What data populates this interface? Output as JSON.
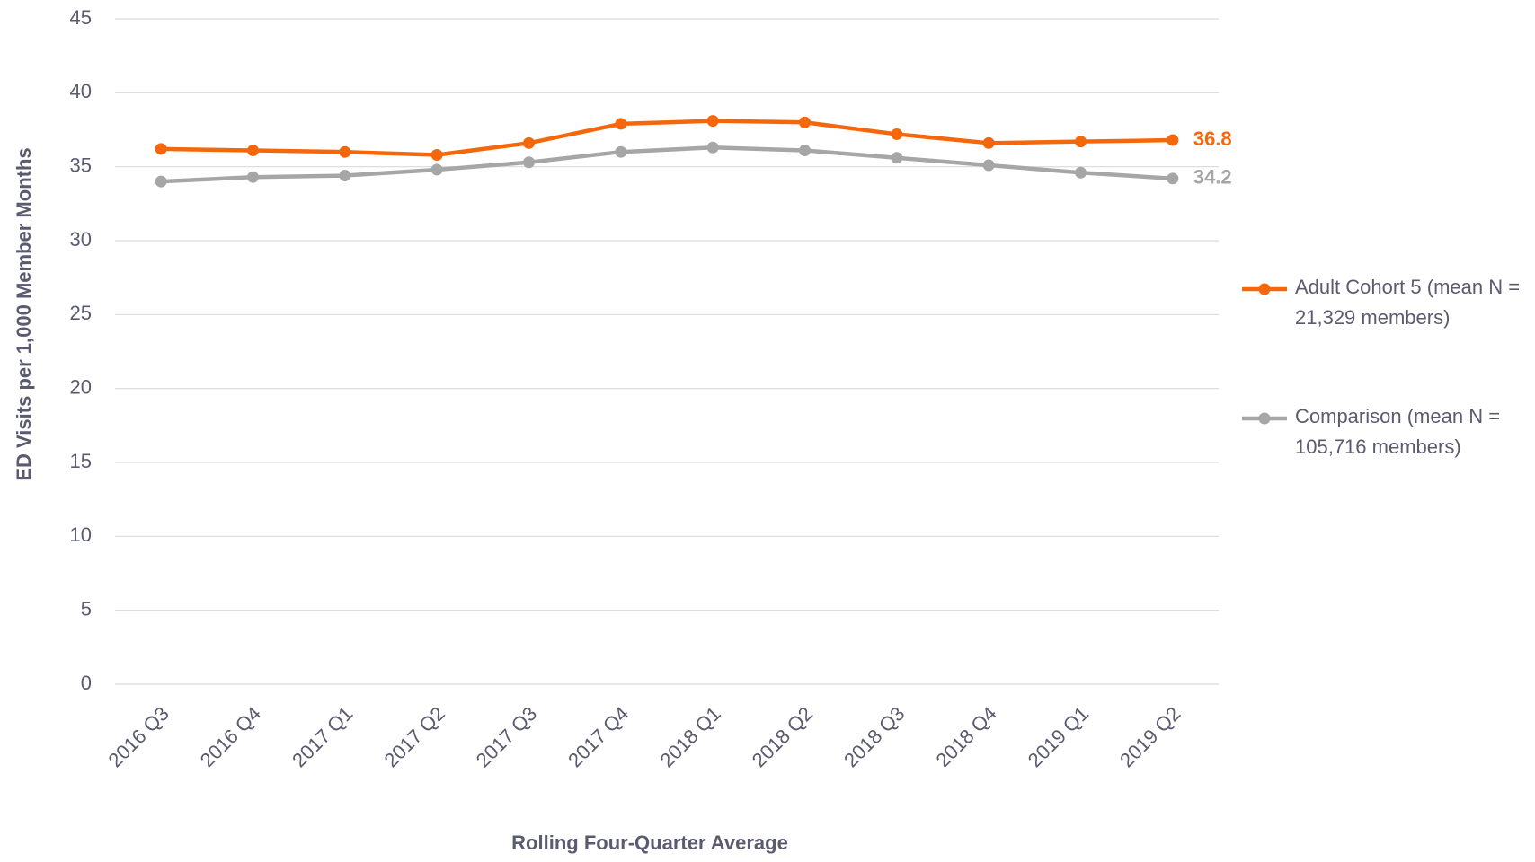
{
  "chart_data": {
    "type": "line",
    "x_label": "Rolling Four-Quarter Average",
    "y_label": "ED Visits per 1,000 Member Months",
    "categories": [
      "2016 Q3",
      "2016 Q4",
      "2017 Q1",
      "2017 Q2",
      "2017 Q3",
      "2017 Q4",
      "2018 Q1",
      "2018 Q2",
      "2018 Q3",
      "2018 Q4",
      "2019 Q1",
      "2019 Q2"
    ],
    "series": [
      {
        "name": "Adult Cohort 5 (mean N = 21,329 members)",
        "color": "#f4680b",
        "values": [
          36.2,
          36.1,
          36.0,
          35.8,
          36.6,
          37.9,
          38.1,
          38.0,
          37.2,
          36.6,
          36.7,
          36.8
        ]
      },
      {
        "name": "Comparison (mean N = 105,716 members)",
        "color": "#a6a6a6",
        "values": [
          34.0,
          34.3,
          34.4,
          34.8,
          35.3,
          36.0,
          36.3,
          36.1,
          35.6,
          35.1,
          34.6,
          34.2
        ]
      }
    ],
    "ylim": [
      0,
      45
    ],
    "yticks": [
      0,
      5,
      10,
      15,
      20,
      25,
      30,
      35,
      40,
      45
    ],
    "grid": true,
    "legend": "right",
    "end_labels": true
  }
}
